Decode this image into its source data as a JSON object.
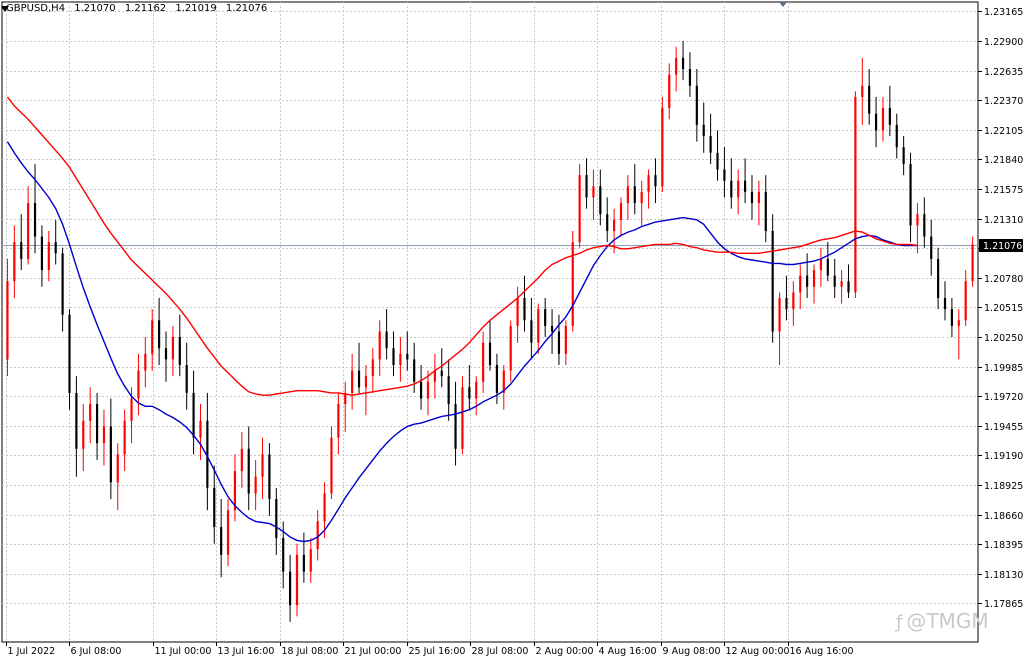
{
  "header": {
    "symbol": "GBPUSD,H4",
    "open": "1.21070",
    "high": "1.21162",
    "low": "1.21019",
    "close": "1.21076"
  },
  "watermark": {
    "icon": "tmgm-logo",
    "text": "@TMGM"
  },
  "colors": {
    "bull": "#ff0000",
    "bear": "#000000",
    "ma_fast": "#0000cc",
    "ma_slow": "#ff0000",
    "grid": "#c8c8c8",
    "current_line": "#8ea0b8",
    "price_label_bg": "#000000",
    "price_label_fg": "#ffffff"
  },
  "chart_data": {
    "type": "candlestick",
    "title": "GBPUSD,H4",
    "current_price": "1.21076",
    "ylim": [
      1.1752,
      1.2325
    ],
    "y_ticks": [
      "1.23165",
      "1.22900",
      "1.22635",
      "1.22370",
      "1.22105",
      "1.21840",
      "1.21575",
      "1.21310",
      "1.21045",
      "1.20780",
      "1.20515",
      "1.20250",
      "1.19985",
      "1.19720",
      "1.19455",
      "1.19190",
      "1.18925",
      "1.18660",
      "1.18395",
      "1.18130",
      "1.17865"
    ],
    "x_ticks": [
      {
        "label": "1 Jul 2022",
        "index": 0
      },
      {
        "label": "6 Jul 08:00",
        "index": 16
      },
      {
        "label": "11 Jul 00:00",
        "index": 37
      },
      {
        "label": "13 Jul 16:00",
        "index": 53
      },
      {
        "label": "18 Jul 08:00",
        "index": 69
      },
      {
        "label": "21 Jul 00:00",
        "index": 85
      },
      {
        "label": "25 Jul 16:00",
        "index": 101
      },
      {
        "label": "28 Jul 08:00",
        "index": 117
      },
      {
        "label": "2 Aug 00:00",
        "index": 133
      },
      {
        "label": "4 Aug 16:00",
        "index": 149
      },
      {
        "label": "9 Aug 08:00",
        "index": 165
      },
      {
        "label": "12 Aug 00:00",
        "index": 181
      },
      {
        "label": "16 Aug 16:00",
        "index": 197
      }
    ],
    "x_index_range": [
      -1,
      245
    ],
    "candles": [
      [
        1.2005,
        1.2095,
        1.199,
        1.2075
      ],
      [
        1.2075,
        1.2125,
        1.206,
        1.211
      ],
      [
        1.211,
        1.2135,
        1.2085,
        1.2095
      ],
      [
        1.2095,
        1.216,
        1.209,
        1.2145
      ],
      [
        1.2145,
        1.218,
        1.21,
        1.2115
      ],
      [
        1.2115,
        1.2125,
        1.207,
        1.2085
      ],
      [
        1.2085,
        1.212,
        1.2075,
        1.211
      ],
      [
        1.211,
        1.213,
        1.209,
        1.21
      ],
      [
        1.21,
        1.2105,
        1.203,
        1.2045
      ],
      [
        1.2045,
        1.205,
        1.196,
        1.1975
      ],
      [
        1.1975,
        1.199,
        1.19,
        1.1925
      ],
      [
        1.1925,
        1.1965,
        1.1905,
        1.195
      ],
      [
        1.195,
        1.198,
        1.193,
        1.1965
      ],
      [
        1.1965,
        1.1975,
        1.1915,
        1.193
      ],
      [
        1.193,
        1.196,
        1.191,
        1.1945
      ],
      [
        1.1945,
        1.197,
        1.188,
        1.1895
      ],
      [
        1.1895,
        1.193,
        1.187,
        1.192
      ],
      [
        1.192,
        1.196,
        1.1905,
        1.195
      ],
      [
        1.195,
        1.198,
        1.193,
        1.197
      ],
      [
        1.197,
        1.201,
        1.1955,
        1.1995
      ],
      [
        1.1995,
        1.2025,
        1.198,
        1.201
      ],
      [
        1.201,
        1.205,
        1.1995,
        1.204
      ],
      [
        1.204,
        1.206,
        1.2,
        1.2015
      ],
      [
        1.2015,
        1.203,
        1.1985,
        1.2005
      ],
      [
        1.2005,
        1.2035,
        1.199,
        1.2025
      ],
      [
        1.2025,
        1.2045,
        1.199,
        1.2
      ],
      [
        1.2,
        1.202,
        1.196,
        1.1975
      ],
      [
        1.1975,
        1.1995,
        1.192,
        1.1935
      ],
      [
        1.1935,
        1.1965,
        1.1915,
        1.195
      ],
      [
        1.195,
        1.1975,
        1.187,
        1.189
      ],
      [
        1.189,
        1.191,
        1.184,
        1.1855
      ],
      [
        1.1855,
        1.188,
        1.181,
        1.183
      ],
      [
        1.183,
        1.188,
        1.182,
        1.187
      ],
      [
        1.187,
        1.192,
        1.186,
        1.1905
      ],
      [
        1.1905,
        1.194,
        1.189,
        1.1925
      ],
      [
        1.1925,
        1.1945,
        1.187,
        1.1885
      ],
      [
        1.1885,
        1.1915,
        1.187,
        1.19
      ],
      [
        1.19,
        1.1935,
        1.188,
        1.192
      ],
      [
        1.192,
        1.193,
        1.1865,
        1.188
      ],
      [
        1.188,
        1.189,
        1.183,
        1.1845
      ],
      [
        1.1845,
        1.186,
        1.18,
        1.1815
      ],
      [
        1.1815,
        1.183,
        1.177,
        1.1785
      ],
      [
        1.1785,
        1.184,
        1.1775,
        1.183
      ],
      [
        1.183,
        1.185,
        1.1805,
        1.1815
      ],
      [
        1.1815,
        1.1845,
        1.1805,
        1.1835
      ],
      [
        1.1835,
        1.187,
        1.1825,
        1.186
      ],
      [
        1.186,
        1.1895,
        1.1845,
        1.1885
      ],
      [
        1.1885,
        1.1945,
        1.188,
        1.1935
      ],
      [
        1.1935,
        1.1975,
        1.192,
        1.1965
      ],
      [
        1.1965,
        1.1985,
        1.194,
        1.1975
      ],
      [
        1.1975,
        1.201,
        1.196,
        1.1995
      ],
      [
        1.1995,
        1.202,
        1.1975,
        1.198
      ],
      [
        1.198,
        1.2,
        1.1955,
        1.199
      ],
      [
        1.199,
        1.2015,
        1.1975,
        1.2005
      ],
      [
        1.2005,
        1.204,
        1.199,
        1.203
      ],
      [
        1.203,
        1.205,
        1.2005,
        1.2015
      ],
      [
        1.2015,
        1.203,
        1.199,
        1.2
      ],
      [
        1.2,
        1.2025,
        1.1985,
        1.201
      ],
      [
        1.201,
        1.203,
        1.1995,
        1.2005
      ],
      [
        1.2005,
        1.202,
        1.1975,
        1.1985
      ],
      [
        1.1985,
        1.2,
        1.196,
        1.197
      ],
      [
        1.197,
        1.1995,
        1.1955,
        1.1985
      ],
      [
        1.1985,
        1.201,
        1.197,
        1.1995
      ],
      [
        1.1995,
        1.2015,
        1.198,
        1.199
      ],
      [
        1.199,
        1.2005,
        1.195,
        1.1965
      ],
      [
        1.1965,
        1.1985,
        1.191,
        1.1925
      ],
      [
        1.1925,
        1.199,
        1.192,
        1.198
      ],
      [
        1.198,
        1.2,
        1.196,
        1.197
      ],
      [
        1.197,
        1.199,
        1.1955,
        1.1985
      ],
      [
        1.1985,
        1.203,
        1.1975,
        1.202
      ],
      [
        1.202,
        1.204,
        1.1995,
        1.2
      ],
      [
        1.2,
        1.201,
        1.1965,
        1.1975
      ],
      [
        1.1975,
        1.2,
        1.196,
        1.1995
      ],
      [
        1.1995,
        1.204,
        1.1985,
        1.2035
      ],
      [
        1.2035,
        1.207,
        1.202,
        1.206
      ],
      [
        1.206,
        1.208,
        1.203,
        1.204
      ],
      [
        1.204,
        1.206,
        1.2005,
        1.202
      ],
      [
        1.202,
        1.2055,
        1.201,
        1.205
      ],
      [
        1.205,
        1.206,
        1.2025,
        1.2035
      ],
      [
        1.2035,
        1.205,
        1.201,
        1.203
      ],
      [
        1.203,
        1.2045,
        1.2,
        1.201
      ],
      [
        1.201,
        1.204,
        1.2,
        1.2035
      ],
      [
        1.2035,
        1.212,
        1.203,
        1.211
      ],
      [
        1.211,
        1.218,
        1.2105,
        1.217
      ],
      [
        1.217,
        1.2185,
        1.214,
        1.215
      ],
      [
        1.215,
        1.2175,
        1.213,
        1.216
      ],
      [
        1.216,
        1.2175,
        1.2125,
        1.2135
      ],
      [
        1.2135,
        1.215,
        1.211,
        1.212
      ],
      [
        1.212,
        1.214,
        1.21,
        1.213
      ],
      [
        1.213,
        1.215,
        1.2115,
        1.2145
      ],
      [
        1.2145,
        1.217,
        1.213,
        1.216
      ],
      [
        1.216,
        1.218,
        1.2135,
        1.2145
      ],
      [
        1.2145,
        1.2165,
        1.2125,
        1.2155
      ],
      [
        1.2155,
        1.2175,
        1.214,
        1.217
      ],
      [
        1.217,
        1.2185,
        1.2145,
        1.216
      ],
      [
        1.216,
        1.224,
        1.2155,
        1.223
      ],
      [
        1.223,
        1.227,
        1.222,
        1.226
      ],
      [
        1.226,
        1.2285,
        1.2245,
        1.2275
      ],
      [
        1.2275,
        1.229,
        1.2255,
        1.2265
      ],
      [
        1.2265,
        1.228,
        1.224,
        1.225
      ],
      [
        1.225,
        1.2265,
        1.22,
        1.2215
      ],
      [
        1.2215,
        1.2235,
        1.219,
        1.2205
      ],
      [
        1.2205,
        1.2225,
        1.218,
        1.219
      ],
      [
        1.219,
        1.221,
        1.2165,
        1.2175
      ],
      [
        1.2175,
        1.2195,
        1.215,
        1.2165
      ],
      [
        1.2165,
        1.2185,
        1.214,
        1.215
      ],
      [
        1.215,
        1.2175,
        1.2135,
        1.2165
      ],
      [
        1.2165,
        1.2185,
        1.2145,
        1.2155
      ],
      [
        1.2155,
        1.217,
        1.213,
        1.2145
      ],
      [
        1.2145,
        1.2165,
        1.2125,
        1.2155
      ],
      [
        1.2155,
        1.217,
        1.211,
        1.212
      ],
      [
        1.212,
        1.2135,
        1.202,
        1.203
      ],
      [
        1.203,
        1.2065,
        1.2,
        1.206
      ],
      [
        1.206,
        1.208,
        1.204,
        1.205
      ],
      [
        1.205,
        1.2075,
        1.2035,
        1.2065
      ],
      [
        1.2065,
        1.209,
        1.205,
        1.208
      ],
      [
        1.208,
        1.21,
        1.206,
        1.207
      ],
      [
        1.207,
        1.209,
        1.2055,
        1.2085
      ],
      [
        1.2085,
        1.2105,
        1.207,
        1.2095
      ],
      [
        1.2095,
        1.211,
        1.2075,
        1.208
      ],
      [
        1.208,
        1.2095,
        1.206,
        1.207
      ],
      [
        1.207,
        1.2085,
        1.2055,
        1.2075
      ],
      [
        1.2075,
        1.209,
        1.206,
        1.2065
      ],
      [
        1.2065,
        1.2245,
        1.206,
        1.224
      ],
      [
        1.224,
        1.2275,
        1.2215,
        1.225
      ],
      [
        1.225,
        1.2265,
        1.2215,
        1.2225
      ],
      [
        1.2225,
        1.224,
        1.2195,
        1.221
      ],
      [
        1.221,
        1.224,
        1.22,
        1.223
      ],
      [
        1.223,
        1.225,
        1.2205,
        1.2215
      ],
      [
        1.2215,
        1.2225,
        1.2185,
        1.2195
      ],
      [
        1.2195,
        1.2205,
        1.217,
        1.218
      ],
      [
        1.218,
        1.219,
        1.211,
        1.2125
      ],
      [
        1.2125,
        1.2145,
        1.21,
        1.2135
      ],
      [
        1.2135,
        1.215,
        1.2105,
        1.2115
      ],
      [
        1.2115,
        1.213,
        1.208,
        1.2095
      ],
      [
        1.2095,
        1.2105,
        1.205,
        1.206
      ],
      [
        1.206,
        1.2075,
        1.204,
        1.205
      ],
      [
        1.205,
        1.206,
        1.2025,
        1.2035
      ],
      [
        1.2035,
        1.205,
        1.2005,
        1.204
      ],
      [
        1.204,
        1.2085,
        1.2035,
        1.2075
      ],
      [
        1.2075,
        1.2115,
        1.207,
        1.2108
      ]
    ],
    "series": [
      {
        "name": "",
        "color": "#0000cc",
        "indicator": "moving average (fast)",
        "values": [
          1.22,
          1.219,
          1.2181,
          1.2173,
          1.2166,
          1.2158,
          1.215,
          1.214,
          1.2126,
          1.2108,
          1.2088,
          1.2069,
          1.2052,
          1.2036,
          1.2021,
          1.2006,
          1.1992,
          1.1981,
          1.1972,
          1.1966,
          1.1963,
          1.1963,
          1.196,
          1.1956,
          1.1953,
          1.1949,
          1.1944,
          1.1937,
          1.1929,
          1.1918,
          1.1906,
          1.1893,
          1.1882,
          1.1874,
          1.1868,
          1.1863,
          1.186,
          1.1859,
          1.1858,
          1.1855,
          1.1851,
          1.1846,
          1.1843,
          1.1842,
          1.1843,
          1.1846,
          1.1852,
          1.1861,
          1.1871,
          1.1881,
          1.189,
          1.1899,
          1.1907,
          1.1915,
          1.1923,
          1.193,
          1.1936,
          1.1941,
          1.1945,
          1.1947,
          1.1948,
          1.195,
          1.1952,
          1.1954,
          1.1955,
          1.1956,
          1.1958,
          1.196,
          1.1963,
          1.1967,
          1.197,
          1.1973,
          1.1977,
          1.1983,
          1.1991,
          1.1999,
          1.2006,
          1.2013,
          1.2021,
          1.2028,
          1.2036,
          1.2043,
          1.2053,
          1.2065,
          1.2077,
          1.2089,
          1.2098,
          1.2106,
          1.2112,
          1.2116,
          1.2119,
          1.2121,
          1.2124,
          1.2126,
          1.2128,
          1.2129,
          1.213,
          1.2131,
          1.2132,
          1.2131,
          1.213,
          1.2126,
          1.2118,
          1.211,
          1.2104,
          1.21,
          1.2097,
          1.2095,
          1.2094,
          1.2093,
          1.2092,
          1.2091,
          1.2091,
          1.209,
          1.209,
          1.2091,
          1.2092,
          1.2093,
          1.2095,
          1.2098,
          1.2101,
          1.2105,
          1.2109,
          1.2113,
          1.2115,
          1.2116,
          1.2115,
          1.2112,
          1.211,
          1.2108,
          1.2107,
          1.2107,
          1.2107
        ]
      },
      {
        "name": "",
        "color": "#ff0000",
        "indicator": "moving average (slow)",
        "values": [
          1.224,
          1.2232,
          1.2226,
          1.222,
          1.2213,
          1.2206,
          1.2199,
          1.2192,
          1.2185,
          1.2177,
          1.2167,
          1.2157,
          1.2147,
          1.2137,
          1.2127,
          1.2118,
          1.211,
          1.2102,
          1.2094,
          1.2088,
          1.2082,
          1.2076,
          1.207,
          1.2064,
          1.2057,
          1.205,
          1.2042,
          1.2033,
          1.2024,
          1.2015,
          1.2007,
          1.1999,
          1.1993,
          1.1987,
          1.1981,
          1.1976,
          1.1974,
          1.1973,
          1.1973,
          1.1974,
          1.1975,
          1.1976,
          1.1977,
          1.1977,
          1.1977,
          1.1977,
          1.1976,
          1.1975,
          1.1975,
          1.1974,
          1.1973,
          1.1974,
          1.1975,
          1.1976,
          1.1977,
          1.1978,
          1.1979,
          1.198,
          1.1981,
          1.1983,
          1.1986,
          1.199,
          1.1995,
          1.1999,
          1.2004,
          1.2009,
          1.2014,
          1.202,
          1.2027,
          1.2034,
          1.204,
          1.2045,
          1.205,
          1.2055,
          1.206,
          1.2066,
          1.2072,
          1.2078,
          1.2085,
          1.209,
          1.2093,
          1.2096,
          1.2098,
          1.21,
          1.2103,
          1.2105,
          1.2106,
          1.2107,
          1.2106,
          1.2104,
          1.2104,
          1.2105,
          1.2106,
          1.2107,
          1.2108,
          1.2108,
          1.2108,
          1.2109,
          1.2108,
          1.2106,
          1.2105,
          1.2103,
          1.2102,
          1.2101,
          1.2101,
          1.2101,
          1.21,
          1.21,
          1.21,
          1.21,
          1.2101,
          1.2102,
          1.2103,
          1.2104,
          1.2105,
          1.2106,
          1.2108,
          1.211,
          1.2112,
          1.2113,
          1.2114,
          1.2116,
          1.2118,
          1.212,
          1.2119,
          1.2116,
          1.2113,
          1.2111,
          1.2109,
          1.2108,
          1.2108,
          1.2108,
          1.2107
        ]
      }
    ],
    "grid": true,
    "legend": "none"
  }
}
